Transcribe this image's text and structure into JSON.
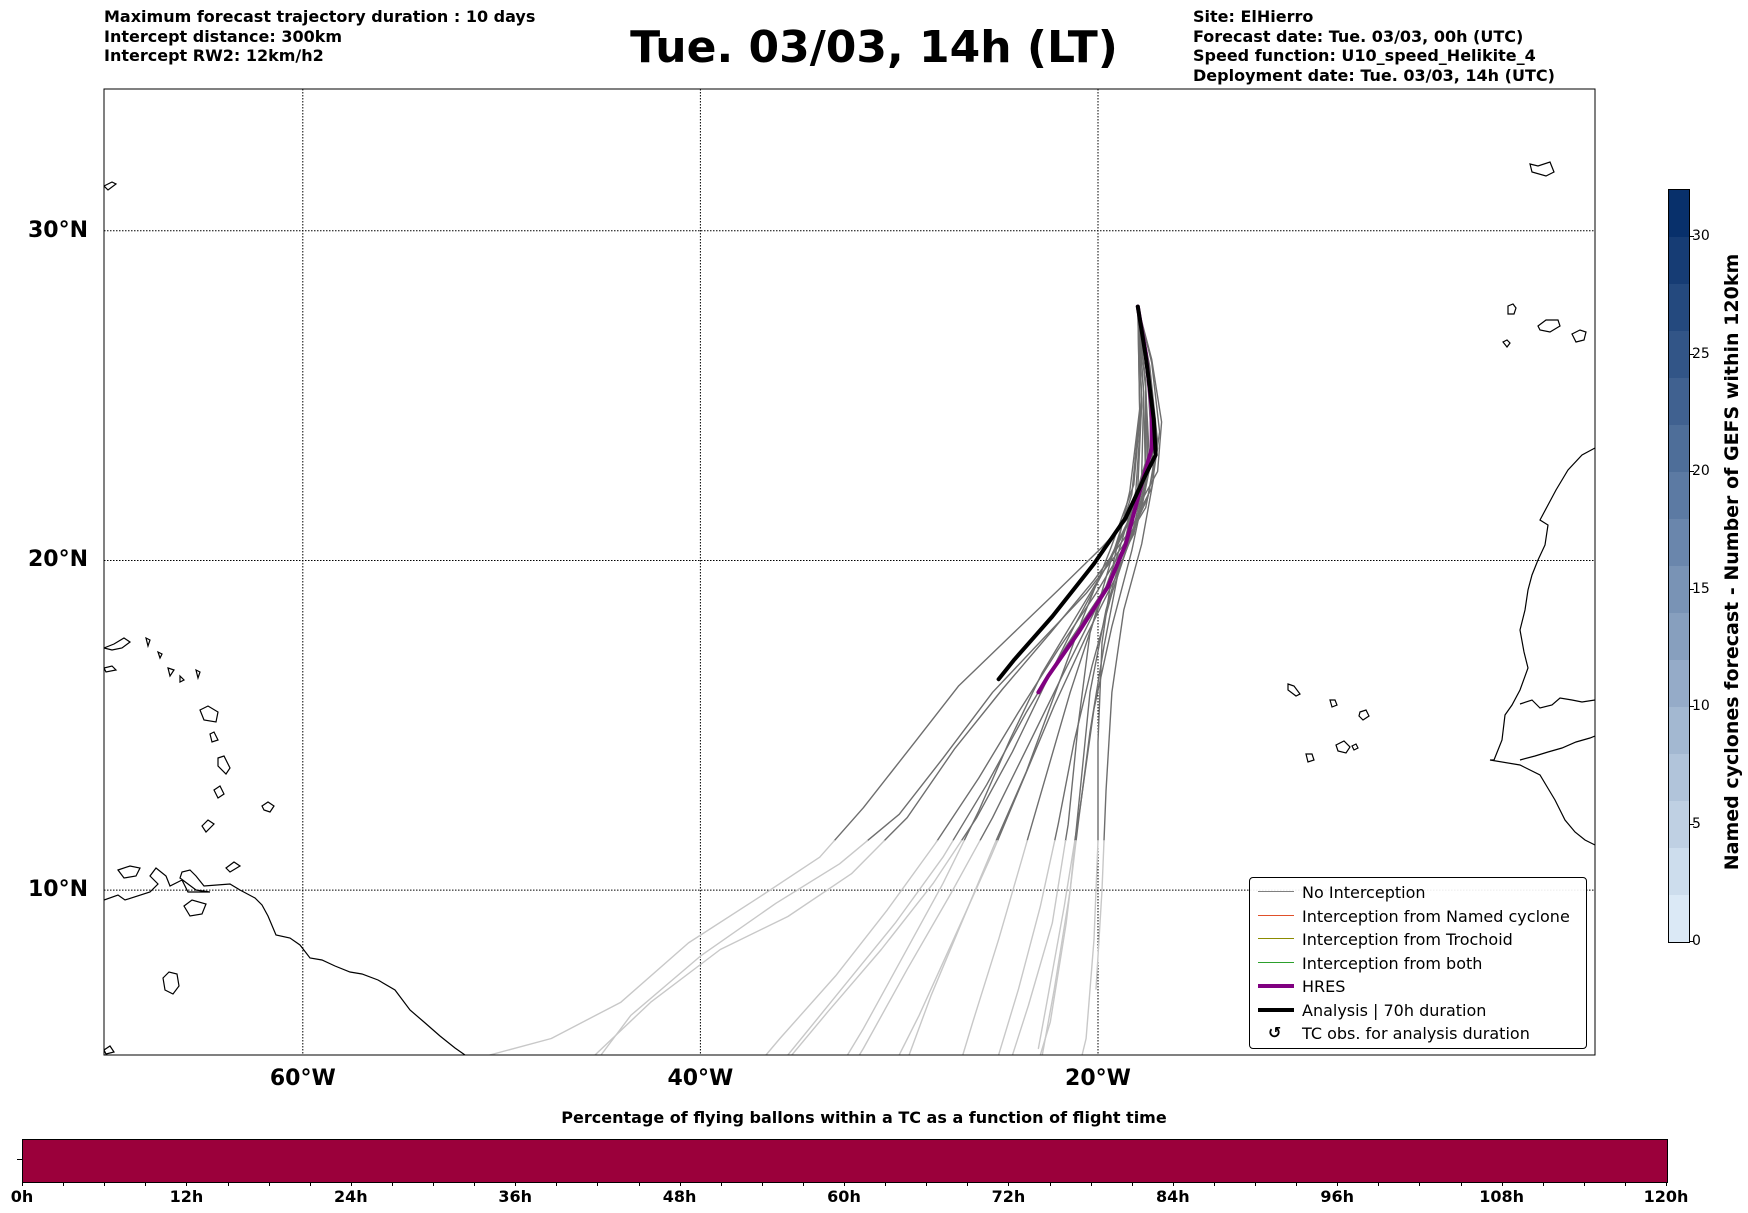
{
  "header": {
    "left": [
      "Maximum forecast trajectory duration : 10 days",
      "Intercept distance: 300km",
      "Intercept RW2: 12km/h2"
    ],
    "right": [
      "Site: ElHierro",
      "Forecast date: Tue. 03/03, 00h (UTC)",
      "Speed function: U10_speed_Helikite_4",
      "Deployment date: Tue. 03/03, 14h (UTC)"
    ],
    "title": "Tue. 03/03, 14h (LT)"
  },
  "map": {
    "lon_range": [
      -70,
      5
    ],
    "lat_range": [
      5,
      34.3
    ],
    "lat_ticks": [
      {
        "value": 30,
        "label": "30°N"
      },
      {
        "value": 20,
        "label": "20°N"
      },
      {
        "value": 10,
        "label": "10°N"
      }
    ],
    "lon_ticks": [
      {
        "value": -60,
        "label": "60°W"
      },
      {
        "value": -40,
        "label": "40°W"
      },
      {
        "value": -20,
        "label": "20°W"
      }
    ],
    "launch_site": {
      "lon": -18.0,
      "lat": 27.7
    },
    "analysis_track": {
      "label": "Analysis | 70h duration",
      "color": "#000000",
      "points": [
        [
          -18.0,
          27.7
        ],
        [
          -17.6,
          26.2
        ],
        [
          -17.2,
          24.3
        ],
        [
          -17.1,
          23.2
        ],
        [
          -17.6,
          22.6
        ],
        [
          -18.6,
          21.3
        ],
        [
          -20.2,
          19.9
        ],
        [
          -22.3,
          18.3
        ],
        [
          -24.2,
          17.0
        ],
        [
          -25.0,
          16.4
        ]
      ]
    },
    "hres_track": {
      "label": "HRES",
      "color": "#800080",
      "points": [
        [
          -18.0,
          27.7
        ],
        [
          -17.6,
          26.3
        ],
        [
          -17.3,
          24.6
        ],
        [
          -17.3,
          23.4
        ],
        [
          -17.9,
          22.1
        ],
        [
          -18.6,
          20.5
        ],
        [
          -19.5,
          19.2
        ],
        [
          -21.0,
          17.8
        ],
        [
          -22.5,
          16.5
        ],
        [
          -23.0,
          16.0
        ]
      ]
    },
    "ensemble_tracks": [
      [
        [
          -18.0,
          27.7
        ],
        [
          -17.5,
          25.5
        ],
        [
          -17.2,
          22.5
        ],
        [
          -17.8,
          20.5
        ],
        [
          -18.7,
          18.5
        ],
        [
          -19.3,
          16.0
        ],
        [
          -19.6,
          13.0
        ],
        [
          -19.8,
          10.0
        ],
        [
          -20.1,
          7.0
        ]
      ],
      [
        [
          -18.0,
          27.7
        ],
        [
          -17.7,
          25.0
        ],
        [
          -17.6,
          22.3
        ],
        [
          -18.3,
          20.3
        ],
        [
          -19.3,
          18.0
        ],
        [
          -20.2,
          15.5
        ],
        [
          -20.9,
          12.5
        ],
        [
          -21.7,
          9.5
        ],
        [
          -22.6,
          6.5
        ],
        [
          -23.0,
          5.2
        ]
      ],
      [
        [
          -18.0,
          27.7
        ],
        [
          -17.8,
          24.8
        ],
        [
          -18.0,
          22.2
        ],
        [
          -19.0,
          20.2
        ],
        [
          -20.2,
          18.2
        ],
        [
          -21.4,
          16.0
        ],
        [
          -22.6,
          13.5
        ],
        [
          -23.8,
          11.0
        ],
        [
          -25.0,
          8.5
        ],
        [
          -26.3,
          6.0
        ],
        [
          -26.8,
          5.0
        ]
      ],
      [
        [
          -18.0,
          27.7
        ],
        [
          -17.6,
          25.2
        ],
        [
          -17.4,
          22.9
        ],
        [
          -18.0,
          21.2
        ],
        [
          -19.1,
          19.5
        ],
        [
          -20.6,
          17.7
        ],
        [
          -22.2,
          15.6
        ],
        [
          -23.8,
          13.3
        ],
        [
          -25.4,
          11.0
        ],
        [
          -27.2,
          8.6
        ],
        [
          -29.0,
          6.2
        ],
        [
          -30.0,
          5.0
        ]
      ],
      [
        [
          -18.0,
          27.7
        ],
        [
          -17.5,
          25.6
        ],
        [
          -17.2,
          23.4
        ],
        [
          -17.8,
          21.6
        ],
        [
          -18.9,
          20.0
        ],
        [
          -20.3,
          18.3
        ],
        [
          -21.8,
          16.5
        ],
        [
          -23.5,
          14.4
        ],
        [
          -25.3,
          12.2
        ],
        [
          -27.4,
          9.9
        ],
        [
          -29.6,
          7.6
        ],
        [
          -31.8,
          5.2
        ],
        [
          -32.0,
          5.0
        ]
      ],
      [
        [
          -18.0,
          27.7
        ],
        [
          -17.9,
          24.5
        ],
        [
          -18.3,
          22.0
        ],
        [
          -19.3,
          20.1
        ],
        [
          -20.4,
          17.8
        ],
        [
          -21.0,
          15.0
        ],
        [
          -21.5,
          12.0
        ],
        [
          -22.3,
          9.0
        ],
        [
          -23.5,
          6.5
        ],
        [
          -24.3,
          5.0
        ]
      ],
      [
        [
          -18.0,
          27.7
        ],
        [
          -17.4,
          25.9
        ],
        [
          -17.0,
          23.6
        ],
        [
          -17.5,
          21.9
        ],
        [
          -18.5,
          20.6
        ],
        [
          -20.1,
          19.0
        ],
        [
          -22.0,
          17.3
        ],
        [
          -24.0,
          15.4
        ],
        [
          -26.0,
          13.4
        ],
        [
          -28.2,
          11.4
        ],
        [
          -30.6,
          9.4
        ],
        [
          -33.2,
          7.4
        ],
        [
          -36.0,
          5.5
        ],
        [
          -36.7,
          5.0
        ]
      ],
      [
        [
          -18.0,
          27.7
        ],
        [
          -17.6,
          25.3
        ],
        [
          -17.6,
          23.0
        ],
        [
          -18.4,
          21.3
        ],
        [
          -19.7,
          19.7
        ],
        [
          -21.2,
          18.0
        ],
        [
          -22.7,
          16.2
        ],
        [
          -24.3,
          14.2
        ],
        [
          -26.1,
          12.2
        ],
        [
          -28.3,
          10.2
        ],
        [
          -30.9,
          8.2
        ],
        [
          -33.6,
          6.3
        ],
        [
          -35.4,
          5.0
        ]
      ],
      [
        [
          -18.0,
          27.7
        ],
        [
          -17.3,
          26.0
        ],
        [
          -16.9,
          23.9
        ],
        [
          -17.3,
          22.2
        ],
        [
          -18.4,
          20.9
        ],
        [
          -20.2,
          19.4
        ],
        [
          -22.4,
          17.8
        ],
        [
          -24.8,
          16.1
        ],
        [
          -27.2,
          14.3
        ],
        [
          -29.6,
          12.2
        ],
        [
          -32.4,
          10.5
        ],
        [
          -35.6,
          9.2
        ],
        [
          -39.0,
          8.2
        ],
        [
          -42.5,
          6.6
        ],
        [
          -45.3,
          5.0
        ]
      ],
      [
        [
          -18.0,
          27.7
        ],
        [
          -17.4,
          25.8
        ],
        [
          -17.0,
          23.4
        ],
        [
          -17.6,
          21.6
        ],
        [
          -18.8,
          20.4
        ],
        [
          -20.6,
          19.0
        ],
        [
          -22.8,
          17.6
        ],
        [
          -25.3,
          16.0
        ],
        [
          -27.8,
          14.0
        ],
        [
          -30.0,
          12.3
        ],
        [
          -33.0,
          10.8
        ],
        [
          -36.2,
          9.6
        ],
        [
          -40.0,
          8.0
        ],
        [
          -43.5,
          6.2
        ],
        [
          -45.0,
          5.0
        ]
      ],
      [
        [
          -18.0,
          27.7
        ],
        [
          -17.3,
          26.1
        ],
        [
          -16.8,
          24.2
        ],
        [
          -17.0,
          22.7
        ],
        [
          -18.0,
          21.6
        ],
        [
          -19.8,
          20.4
        ],
        [
          -22.0,
          19.1
        ],
        [
          -24.6,
          17.6
        ],
        [
          -27.0,
          16.2
        ],
        [
          -29.2,
          14.5
        ],
        [
          -31.8,
          12.5
        ],
        [
          -34.0,
          11.0
        ],
        [
          -37.0,
          9.8
        ],
        [
          -40.6,
          8.4
        ],
        [
          -44.0,
          6.6
        ],
        [
          -47.5,
          5.5
        ],
        [
          -50.6,
          5.0
        ]
      ],
      [
        [
          -18.0,
          27.7
        ],
        [
          -17.7,
          25.1
        ],
        [
          -17.8,
          22.6
        ],
        [
          -18.6,
          20.6
        ],
        [
          -19.6,
          18.5
        ],
        [
          -20.4,
          16.0
        ],
        [
          -20.9,
          13.0
        ],
        [
          -21.4,
          10.0
        ],
        [
          -22.2,
          7.0
        ],
        [
          -22.8,
          5.0
        ]
      ],
      [
        [
          -18.0,
          27.7
        ],
        [
          -17.8,
          24.9
        ],
        [
          -18.2,
          22.3
        ],
        [
          -19.4,
          20.3
        ],
        [
          -20.8,
          18.2
        ],
        [
          -22.2,
          15.9
        ],
        [
          -23.6,
          13.6
        ],
        [
          -25.2,
          11.4
        ],
        [
          -26.8,
          9.1
        ],
        [
          -28.4,
          6.8
        ],
        [
          -29.5,
          5.0
        ]
      ],
      [
        [
          -18.0,
          27.7
        ],
        [
          -17.6,
          25.4
        ],
        [
          -17.5,
          23.0
        ],
        [
          -18.2,
          21.0
        ],
        [
          -19.3,
          19.0
        ],
        [
          -20.3,
          16.8
        ],
        [
          -21.2,
          14.5
        ],
        [
          -22.0,
          12.0
        ],
        [
          -22.9,
          9.5
        ],
        [
          -24.0,
          7.0
        ],
        [
          -25.0,
          5.0
        ]
      ],
      [
        [
          -18.0,
          27.7
        ],
        [
          -17.5,
          25.7
        ],
        [
          -17.3,
          23.5
        ],
        [
          -18.0,
          21.7
        ],
        [
          -19.4,
          20.0
        ],
        [
          -21.0,
          18.4
        ],
        [
          -22.8,
          16.6
        ],
        [
          -24.4,
          14.6
        ],
        [
          -26.0,
          12.4
        ],
        [
          -27.8,
          10.2
        ],
        [
          -29.8,
          8.0
        ],
        [
          -31.8,
          5.8
        ],
        [
          -32.6,
          5.0
        ]
      ],
      [
        [
          -18.0,
          27.7
        ],
        [
          -17.9,
          24.6
        ],
        [
          -18.4,
          22.1
        ],
        [
          -19.2,
          20.0
        ],
        [
          -19.8,
          17.5
        ],
        [
          -20.0,
          14.5
        ],
        [
          -20.0,
          11.5
        ],
        [
          -20.2,
          8.5
        ],
        [
          -20.6,
          5.5
        ],
        [
          -20.8,
          5.0
        ]
      ],
      [
        [
          -18.0,
          27.7
        ],
        [
          -17.6,
          25.3
        ],
        [
          -17.5,
          22.8
        ],
        [
          -18.2,
          20.8
        ],
        [
          -19.6,
          19.2
        ],
        [
          -21.6,
          17.4
        ],
        [
          -23.6,
          15.4
        ],
        [
          -25.6,
          13.2
        ],
        [
          -27.8,
          11.0
        ],
        [
          -30.2,
          9.0
        ],
        [
          -32.9,
          7.0
        ],
        [
          -35.6,
          5.0
        ]
      ],
      [
        [
          -18.0,
          27.7
        ],
        [
          -17.8,
          24.7
        ],
        [
          -18.1,
          22.1
        ],
        [
          -18.9,
          19.9
        ],
        [
          -19.7,
          17.4
        ],
        [
          -20.4,
          14.8
        ],
        [
          -21.0,
          12.0
        ],
        [
          -21.6,
          9.0
        ],
        [
          -22.4,
          6.0
        ],
        [
          -22.9,
          5.0
        ]
      ]
    ]
  },
  "legend": [
    {
      "label": "No Interception",
      "color": "#808080",
      "width": 1.2,
      "symbol": "line"
    },
    {
      "label": "Interception from Named cyclone",
      "color": "#e0502a",
      "width": 1.2,
      "symbol": "line"
    },
    {
      "label": "Interception from Trochoid",
      "color": "#8b8b00",
      "width": 1.2,
      "symbol": "line"
    },
    {
      "label": "Interception from both",
      "color": "#2ca02c",
      "width": 1.2,
      "symbol": "line"
    },
    {
      "label": "HRES",
      "color": "#800080",
      "width": 3.5,
      "symbol": "line"
    },
    {
      "label": "Analysis | 70h duration",
      "color": "#000000",
      "width": 3.5,
      "symbol": "line"
    },
    {
      "label": "TC obs. for analysis duration",
      "color": "#000000",
      "symbol": "cyclone",
      "glyph": "↺"
    }
  ],
  "colorbar": {
    "label": "Named cyclones forecast - Number of GEFS within 120km",
    "min": 0,
    "max": 32,
    "ticks": [
      {
        "value": 0,
        "label": "0"
      },
      {
        "value": 5,
        "label": "5"
      },
      {
        "value": 10,
        "label": "10"
      },
      {
        "value": 15,
        "label": "15"
      },
      {
        "value": 20,
        "label": "20"
      },
      {
        "value": 25,
        "label": "25"
      },
      {
        "value": 30,
        "label": "30"
      }
    ],
    "color_low": "#dbe9f6",
    "color_high": "#08306b"
  },
  "percentage_bar": {
    "title": "Percentage of flying ballons within a TC as a function of flight time",
    "color": "#9b003b",
    "max_hours": 120,
    "minor_step_hours": 3,
    "ticks": [
      {
        "value": 0,
        "label": "0h"
      },
      {
        "value": 12,
        "label": "12h"
      },
      {
        "value": 24,
        "label": "24h"
      },
      {
        "value": 36,
        "label": "36h"
      },
      {
        "value": 48,
        "label": "48h"
      },
      {
        "value": 60,
        "label": "60h"
      },
      {
        "value": 72,
        "label": "72h"
      },
      {
        "value": 84,
        "label": "84h"
      },
      {
        "value": 96,
        "label": "96h"
      },
      {
        "value": 108,
        "label": "108h"
      },
      {
        "value": 120,
        "label": "120h"
      }
    ]
  }
}
